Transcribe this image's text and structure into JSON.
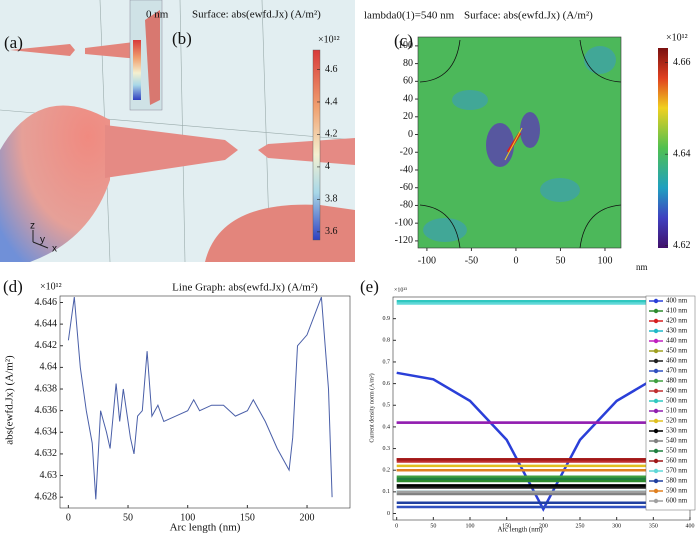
{
  "panel_labels": [
    "(a)",
    "(b)",
    "(c)",
    "(d)",
    "(e)"
  ],
  "chart_data": [
    {
      "type": "surface",
      "title": "0 nm",
      "subtitle": "Surface: abs(ewfd.Jx) (A/m²)",
      "colorbar_label": "×10¹²",
      "clim": [
        3.55,
        4.72
      ],
      "cticks": [
        3.6,
        3.8,
        4,
        4.2,
        4.4,
        4.6
      ],
      "axis_triad": [
        "z",
        "y",
        "x"
      ]
    },
    {
      "type": "heatmap",
      "title": "lambda0(1)=540 nm",
      "subtitle": "Surface: abs(ewfd.Jx) (A/m²)",
      "x_label": "nm",
      "xlim": [
        -110,
        118
      ],
      "xticks": [
        -100,
        -50,
        0,
        50,
        100
      ],
      "ylim": [
        -128,
        110
      ],
      "yticks": [
        -120,
        -100,
        -80,
        -60,
        -40,
        -20,
        0,
        20,
        40,
        60,
        80,
        100
      ],
      "colorbar_label": "×10¹²",
      "clim": [
        4.6195,
        4.6632
      ],
      "cticks": [
        4.62,
        4.64,
        4.66
      ]
    },
    {
      "type": "line",
      "title": "Line Graph: abs(ewfd.Jx) (A/m²)",
      "x_label": "Arc length (nm)",
      "y_label": "abs(ewfd.Jx) (A/m²)",
      "y_multiplier": "×10¹²",
      "color": "#4a5fa8",
      "xlim": [
        -7,
        236
      ],
      "xticks": [
        0,
        50,
        100,
        150,
        200
      ],
      "ylim": [
        4.627,
        4.6466
      ],
      "yticks": [
        4.628,
        4.63,
        4.632,
        4.634,
        4.636,
        4.638,
        4.64,
        4.642,
        4.644,
        4.646
      ],
      "x": [
        0,
        5,
        10,
        15,
        20,
        23,
        27,
        32,
        35,
        40,
        43,
        46,
        52,
        55,
        58,
        62,
        66,
        70,
        75,
        80,
        90,
        100,
        105,
        110,
        120,
        130,
        140,
        150,
        155,
        165,
        175,
        185,
        188,
        192,
        200,
        212,
        218,
        221
      ],
      "values": [
        4.6425,
        4.6465,
        4.64,
        4.636,
        4.633,
        4.6278,
        4.636,
        4.634,
        4.6325,
        4.6385,
        4.635,
        4.638,
        4.6335,
        4.632,
        4.6355,
        4.636,
        4.6415,
        4.6355,
        4.6365,
        4.635,
        4.6355,
        4.636,
        4.637,
        4.636,
        4.6365,
        4.6365,
        4.6355,
        4.636,
        4.637,
        4.635,
        4.6325,
        4.6305,
        4.6335,
        4.642,
        4.643,
        4.6465,
        4.638,
        4.628
      ]
    },
    {
      "type": "line",
      "x_label": "Arc length (nm)",
      "y_label": "Current density norm (A/m²)",
      "y_multiplier": "×10¹³",
      "xlim": [
        -5,
        400
      ],
      "xticks": [
        0,
        50,
        100,
        150,
        200,
        250,
        300,
        350,
        400
      ],
      "ylim": [
        -0.03,
        1.0
      ],
      "yticks": [
        0,
        0.1,
        0.2,
        0.3,
        0.4,
        0.5,
        0.6,
        0.7,
        0.8,
        0.9
      ],
      "x": [
        0,
        50,
        100,
        150,
        200,
        250,
        300,
        350,
        400
      ],
      "series": [
        {
          "name": "400 nm",
          "color": "#2a3fd8",
          "values": [
            0.65,
            0.62,
            0.52,
            0.34,
            0.02,
            0.34,
            0.52,
            0.62,
            0.65
          ]
        },
        {
          "name": "410 nm",
          "color": "#2e8b2e",
          "values": [
            0.15,
            0.15,
            0.15,
            0.15,
            0.15,
            0.15,
            0.15,
            0.15,
            0.15
          ]
        },
        {
          "name": "420 nm",
          "color": "#d62020",
          "values": [
            0.25,
            0.25,
            0.25,
            0.25,
            0.25,
            0.25,
            0.25,
            0.25,
            0.25
          ]
        },
        {
          "name": "430 nm",
          "color": "#20b8c8",
          "values": [
            0.1,
            0.1,
            0.1,
            0.1,
            0.1,
            0.1,
            0.1,
            0.1,
            0.1
          ]
        },
        {
          "name": "440 nm",
          "color": "#c020c0",
          "values": [
            0.42,
            0.42,
            0.42,
            0.42,
            0.42,
            0.42,
            0.42,
            0.42,
            0.42
          ]
        },
        {
          "name": "450 nm",
          "color": "#a0a020",
          "values": [
            0.2,
            0.2,
            0.2,
            0.2,
            0.2,
            0.2,
            0.2,
            0.2,
            0.2
          ]
        },
        {
          "name": "460 nm",
          "color": "#202020",
          "values": [
            0.12,
            0.12,
            0.12,
            0.12,
            0.12,
            0.12,
            0.12,
            0.12,
            0.12
          ]
        },
        {
          "name": "470 nm",
          "color": "#3050c0",
          "values": [
            0.03,
            0.03,
            0.03,
            0.03,
            0.03,
            0.03,
            0.03,
            0.03,
            0.03
          ]
        },
        {
          "name": "480 nm",
          "color": "#40a040",
          "values": [
            0.17,
            0.17,
            0.17,
            0.17,
            0.17,
            0.17,
            0.17,
            0.17,
            0.17
          ]
        },
        {
          "name": "490 nm",
          "color": "#c03030",
          "values": [
            0.24,
            0.24,
            0.24,
            0.24,
            0.24,
            0.24,
            0.24,
            0.24,
            0.24
          ]
        },
        {
          "name": "500 nm",
          "color": "#30c8c0",
          "values": [
            0.98,
            0.98,
            0.98,
            0.98,
            0.98,
            0.98,
            0.98,
            0.98,
            0.98
          ]
        },
        {
          "name": "510 nm",
          "color": "#9020b0",
          "values": [
            0.42,
            0.42,
            0.42,
            0.42,
            0.42,
            0.42,
            0.42,
            0.42,
            0.42
          ]
        },
        {
          "name": "520 nm",
          "color": "#e0c020",
          "values": [
            0.22,
            0.22,
            0.22,
            0.22,
            0.22,
            0.22,
            0.22,
            0.22,
            0.22
          ]
        },
        {
          "name": "530 nm",
          "color": "#000000",
          "values": [
            0.13,
            0.13,
            0.13,
            0.13,
            0.13,
            0.13,
            0.13,
            0.13,
            0.13
          ]
        },
        {
          "name": "540 nm",
          "color": "#808080",
          "values": [
            0.09,
            0.09,
            0.09,
            0.09,
            0.09,
            0.09,
            0.09,
            0.09,
            0.09
          ]
        },
        {
          "name": "550 nm",
          "color": "#208040",
          "values": [
            0.16,
            0.16,
            0.16,
            0.16,
            0.16,
            0.16,
            0.16,
            0.16,
            0.16
          ]
        },
        {
          "name": "560 nm",
          "color": "#a01818",
          "values": [
            0.25,
            0.25,
            0.25,
            0.25,
            0.25,
            0.25,
            0.25,
            0.25,
            0.25
          ]
        },
        {
          "name": "570 nm",
          "color": "#60d8d8",
          "values": [
            0.97,
            0.97,
            0.97,
            0.97,
            0.97,
            0.97,
            0.97,
            0.97,
            0.97
          ]
        },
        {
          "name": "580 nm",
          "color": "#2040a0",
          "values": [
            0.05,
            0.05,
            0.05,
            0.05,
            0.05,
            0.05,
            0.05,
            0.05,
            0.05
          ]
        },
        {
          "name": "590 nm",
          "color": "#e08020",
          "values": [
            0.2,
            0.2,
            0.2,
            0.2,
            0.2,
            0.2,
            0.2,
            0.2,
            0.2
          ]
        },
        {
          "name": "600 nm",
          "color": "#a0a0a0",
          "values": [
            0.1,
            0.1,
            0.1,
            0.1,
            0.1,
            0.1,
            0.1,
            0.1,
            0.1
          ]
        }
      ]
    }
  ]
}
